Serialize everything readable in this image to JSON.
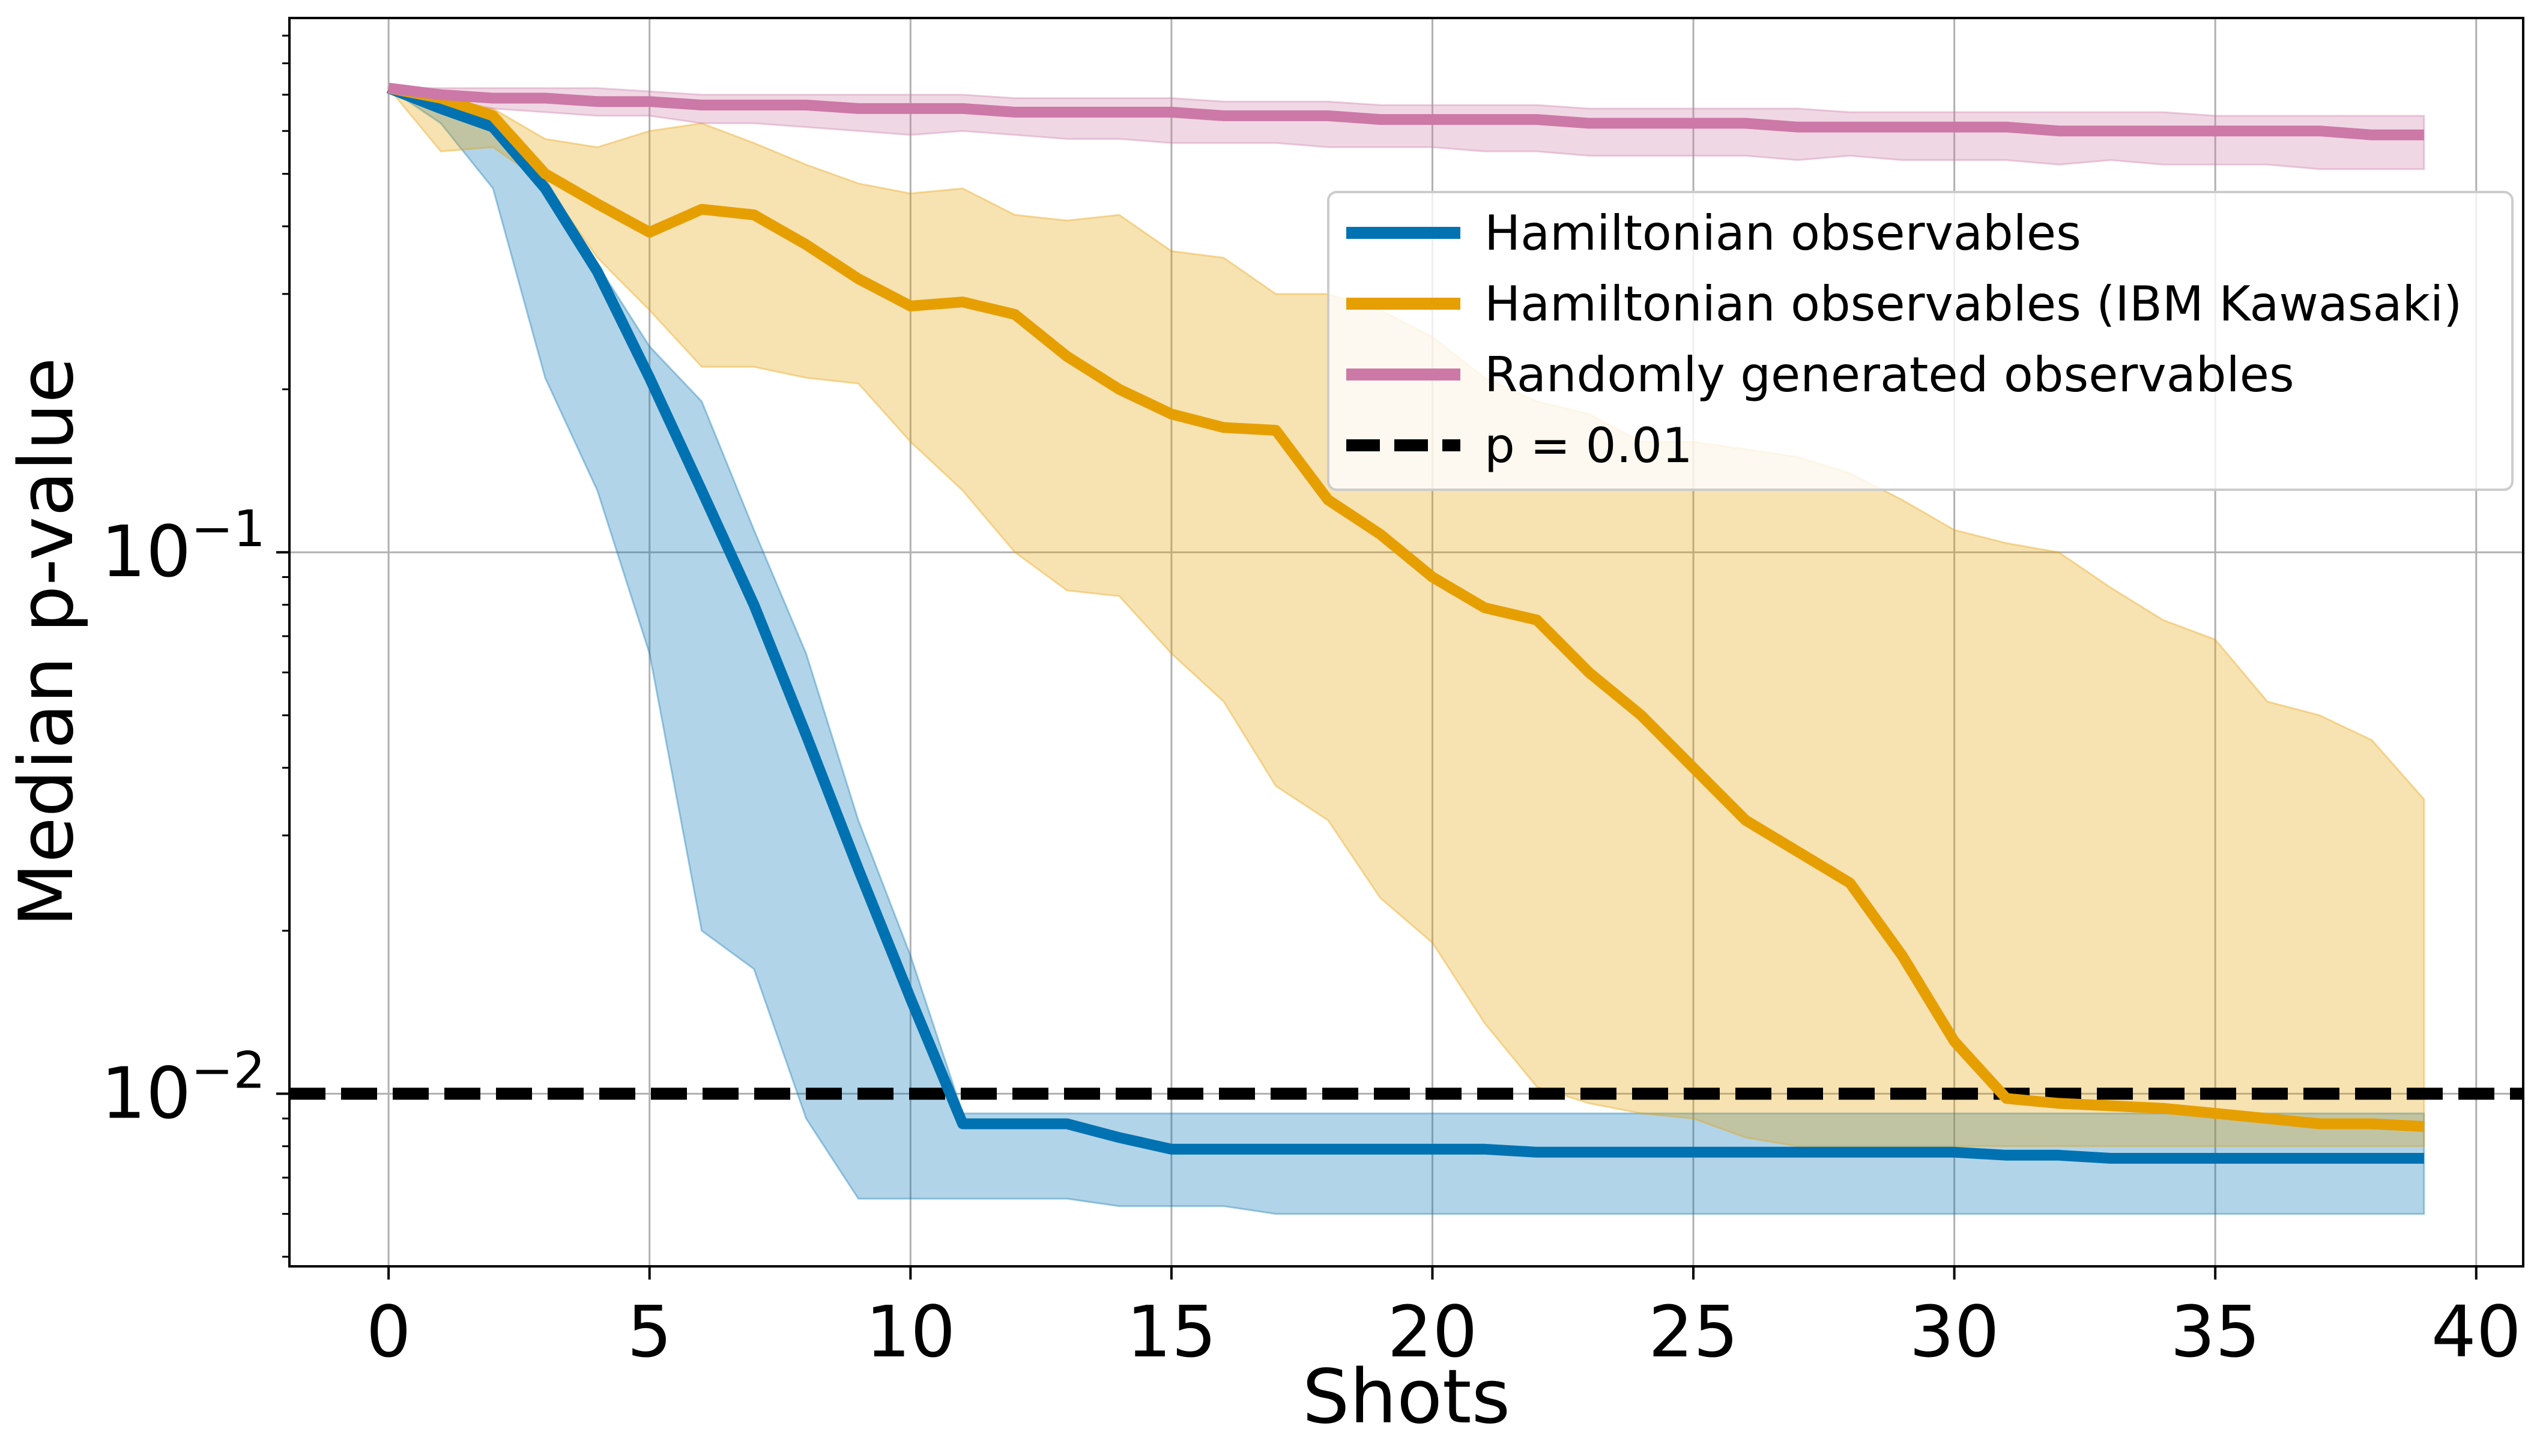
{
  "chart_data": {
    "type": "line",
    "xlabel": "Shots",
    "ylabel": "Median p-value",
    "y_scale": "log",
    "xlim": [
      -1.9,
      40.9
    ],
    "ylim": [
      0.0048,
      0.97
    ],
    "x_ticks": [
      0,
      5,
      10,
      15,
      20,
      25,
      30,
      35,
      40
    ],
    "y_ticks": [
      {
        "value": 0.1,
        "base": "10",
        "exp": "−1"
      },
      {
        "value": 0.01,
        "base": "10",
        "exp": "−2"
      }
    ],
    "grid": true,
    "legend_position": "upper-right",
    "x": [
      0,
      1,
      2,
      3,
      4,
      5,
      6,
      7,
      8,
      9,
      10,
      11,
      12,
      13,
      14,
      15,
      16,
      17,
      18,
      19,
      20,
      21,
      22,
      23,
      24,
      25,
      26,
      27,
      28,
      29,
      30,
      31,
      32,
      33,
      34,
      35,
      36,
      37,
      38,
      39
    ],
    "series": [
      {
        "name": "Hamiltonian observables",
        "color": "#0072B2",
        "median": [
          0.72,
          0.66,
          0.61,
          0.47,
          0.33,
          0.21,
          0.13,
          0.08,
          0.046,
          0.026,
          0.015,
          0.0088,
          0.0088,
          0.0088,
          0.0083,
          0.0079,
          0.0079,
          0.0079,
          0.0079,
          0.0079,
          0.0079,
          0.0079,
          0.0078,
          0.0078,
          0.0078,
          0.0078,
          0.0078,
          0.0078,
          0.0078,
          0.0078,
          0.0078,
          0.0077,
          0.0077,
          0.0076,
          0.0076,
          0.0076,
          0.0076,
          0.0076,
          0.0076,
          0.0076
        ],
        "lower": [
          0.72,
          0.62,
          0.47,
          0.21,
          0.13,
          0.065,
          0.02,
          0.017,
          0.009,
          0.0064,
          0.0064,
          0.0064,
          0.0064,
          0.0064,
          0.0062,
          0.0062,
          0.0062,
          0.006,
          0.006,
          0.006,
          0.006,
          0.006,
          0.006,
          0.006,
          0.006,
          0.006,
          0.006,
          0.006,
          0.006,
          0.006,
          0.006,
          0.006,
          0.006,
          0.006,
          0.006,
          0.006,
          0.006,
          0.006,
          0.006,
          0.006
        ],
        "upper": [
          0.72,
          0.7,
          0.64,
          0.49,
          0.34,
          0.24,
          0.19,
          0.11,
          0.065,
          0.032,
          0.018,
          0.0092,
          0.0092,
          0.0092,
          0.0092,
          0.0092,
          0.0092,
          0.0092,
          0.0092,
          0.0092,
          0.0092,
          0.0092,
          0.0092,
          0.0092,
          0.0092,
          0.0092,
          0.0092,
          0.0092,
          0.0092,
          0.0092,
          0.0092,
          0.0092,
          0.0092,
          0.0092,
          0.0092,
          0.0092,
          0.0092,
          0.0092,
          0.0092,
          0.0092
        ]
      },
      {
        "name": "Hamiltonian observables (IBM Kawasaki)",
        "color": "#E69F00",
        "median": [
          0.72,
          0.69,
          0.64,
          0.5,
          0.44,
          0.39,
          0.43,
          0.42,
          0.37,
          0.32,
          0.285,
          0.29,
          0.275,
          0.23,
          0.2,
          0.18,
          0.17,
          0.168,
          0.125,
          0.108,
          0.09,
          0.079,
          0.075,
          0.06,
          0.05,
          0.04,
          0.032,
          0.028,
          0.0245,
          0.018,
          0.0125,
          0.0098,
          0.0096,
          0.0095,
          0.0094,
          0.0092,
          0.009,
          0.0088,
          0.0088,
          0.0087
        ],
        "lower": [
          0.72,
          0.55,
          0.56,
          0.48,
          0.35,
          0.28,
          0.22,
          0.22,
          0.21,
          0.205,
          0.16,
          0.13,
          0.1,
          0.085,
          0.083,
          0.065,
          0.053,
          0.037,
          0.032,
          0.023,
          0.019,
          0.0135,
          0.0103,
          0.0096,
          0.0092,
          0.009,
          0.0083,
          0.008,
          0.008,
          0.008,
          0.008,
          0.008,
          0.008,
          0.008,
          0.008,
          0.008,
          0.008,
          0.008,
          0.008,
          0.008
        ],
        "upper": [
          0.72,
          0.69,
          0.66,
          0.58,
          0.56,
          0.6,
          0.62,
          0.57,
          0.52,
          0.48,
          0.46,
          0.47,
          0.42,
          0.41,
          0.42,
          0.36,
          0.35,
          0.3,
          0.3,
          0.28,
          0.25,
          0.21,
          0.19,
          0.18,
          0.16,
          0.16,
          0.155,
          0.15,
          0.14,
          0.125,
          0.11,
          0.104,
          0.1,
          0.086,
          0.075,
          0.069,
          0.053,
          0.05,
          0.045,
          0.035
        ]
      },
      {
        "name": "Randomly generated observables",
        "color": "#CC79A7",
        "median": [
          0.72,
          0.7,
          0.69,
          0.69,
          0.68,
          0.68,
          0.67,
          0.67,
          0.67,
          0.66,
          0.66,
          0.66,
          0.65,
          0.65,
          0.65,
          0.65,
          0.64,
          0.64,
          0.64,
          0.63,
          0.63,
          0.63,
          0.63,
          0.62,
          0.62,
          0.62,
          0.62,
          0.61,
          0.61,
          0.61,
          0.61,
          0.61,
          0.6,
          0.6,
          0.6,
          0.6,
          0.6,
          0.6,
          0.59,
          0.59
        ],
        "lower": [
          0.72,
          0.67,
          0.66,
          0.65,
          0.64,
          0.64,
          0.62,
          0.62,
          0.61,
          0.6,
          0.59,
          0.6,
          0.59,
          0.58,
          0.58,
          0.57,
          0.57,
          0.57,
          0.56,
          0.56,
          0.56,
          0.55,
          0.55,
          0.54,
          0.54,
          0.54,
          0.54,
          0.53,
          0.54,
          0.53,
          0.53,
          0.53,
          0.52,
          0.53,
          0.52,
          0.52,
          0.52,
          0.51,
          0.51,
          0.51
        ],
        "upper": [
          0.72,
          0.72,
          0.72,
          0.72,
          0.72,
          0.71,
          0.7,
          0.7,
          0.7,
          0.7,
          0.7,
          0.7,
          0.69,
          0.69,
          0.69,
          0.69,
          0.68,
          0.68,
          0.68,
          0.67,
          0.67,
          0.67,
          0.67,
          0.66,
          0.66,
          0.66,
          0.66,
          0.66,
          0.65,
          0.65,
          0.65,
          0.65,
          0.65,
          0.65,
          0.65,
          0.64,
          0.64,
          0.64,
          0.64,
          0.64
        ]
      }
    ],
    "reference_line": {
      "name": "p = 0.01",
      "value": 0.01,
      "color": "#000000",
      "style": "dashed"
    }
  }
}
